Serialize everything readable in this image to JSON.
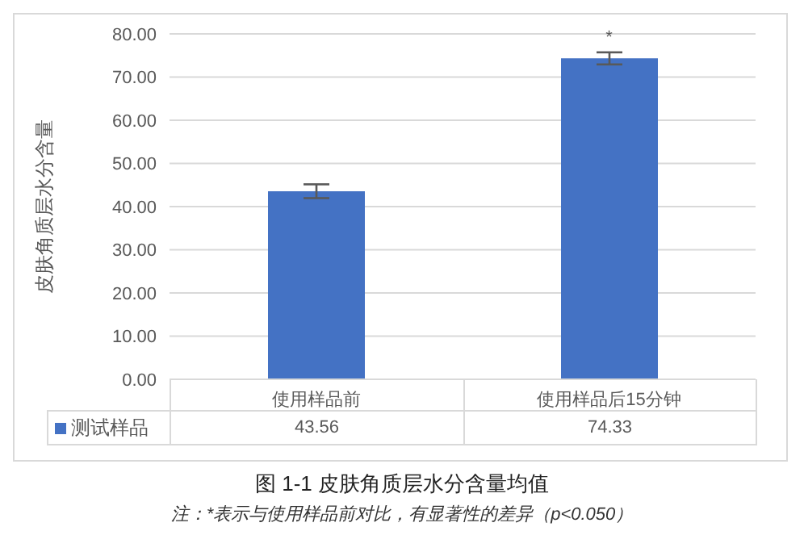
{
  "chart_data": {
    "type": "bar",
    "title": "图 1-1 皮肤角质层水分含量均值",
    "ylabel": "皮肤角质层水分含量",
    "categories": [
      "使用样品前",
      "使用样品后15分钟"
    ],
    "series": [
      {
        "name": "测试样品",
        "color": "#4472c4",
        "values": [
          43.56,
          74.33
        ],
        "errors": [
          1.6,
          1.4
        ]
      }
    ],
    "ylim": [
      0,
      80
    ],
    "yticks": [
      {
        "value": 0,
        "label": "0.00"
      },
      {
        "value": 10,
        "label": "10.00"
      },
      {
        "value": 20,
        "label": "20.00"
      },
      {
        "value": 30,
        "label": "30.00"
      },
      {
        "value": 40,
        "label": "40.00"
      },
      {
        "value": 50,
        "label": "50.00"
      },
      {
        "value": 60,
        "label": "60.00"
      },
      {
        "value": 70,
        "label": "70.00"
      },
      {
        "value": 80,
        "label": "80.00"
      }
    ],
    "grid": "y",
    "legend": "bottom",
    "data_labels": true,
    "annotations": [
      {
        "text": "*",
        "x": "使用样品后15分钟",
        "y": 75.73
      },
      "注：*表示与使用样品前对比，有显著性的差异（p<0.050）"
    ]
  }
}
